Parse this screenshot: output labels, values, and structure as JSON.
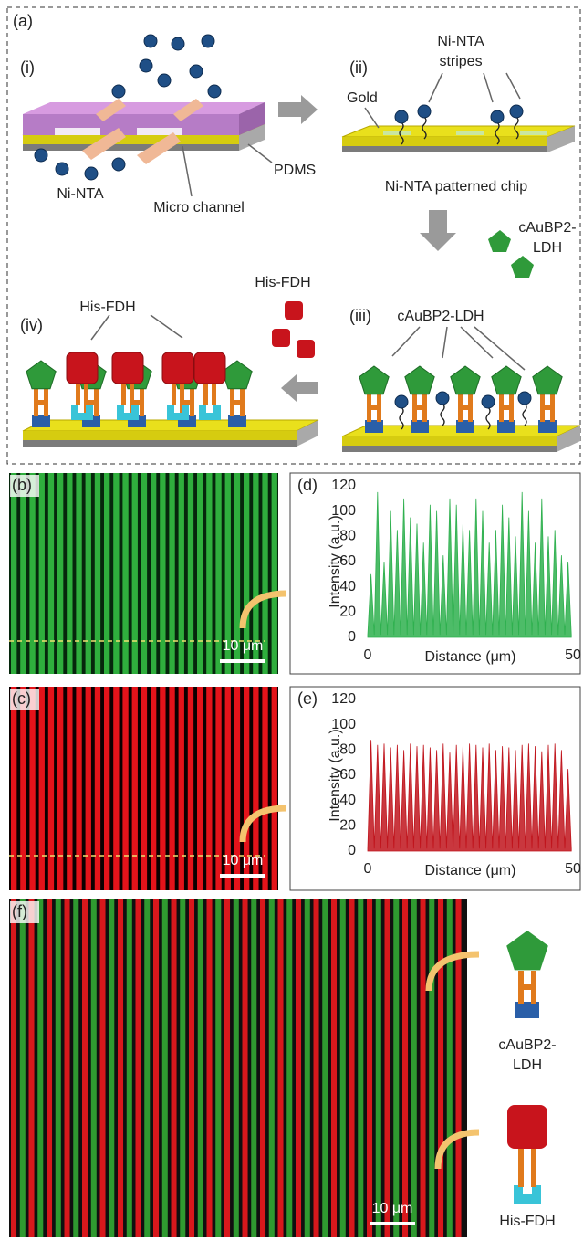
{
  "panel_a": {
    "label": "(a)",
    "sub_labels": [
      "(i)",
      "(ii)",
      "(iii)",
      "(iv)"
    ],
    "annotations": {
      "ni_nta": "Ni-NTA",
      "micro_channel": "Micro channel",
      "pdms": "PDMS",
      "stripes_1": "Ni-NTA",
      "stripes_2": "stripes",
      "gold": "Gold",
      "patterned_chip": "Ni-NTA patterned chip",
      "reagent_ldh_1": "cAuBP2-",
      "reagent_ldh_2": "LDH",
      "ldh_label": "cAuBP2-LDH",
      "reagent_fdh": "His-FDH",
      "fdh_label": "His-FDH"
    }
  },
  "panel_b": {
    "label": "(b)",
    "scale_bar": "10 μm"
  },
  "panel_c": {
    "label": "(c)",
    "scale_bar": "10 μm"
  },
  "panel_f": {
    "label": "(f)",
    "scale_bar": "10 μm",
    "legend": [
      "cAuBP2-",
      "LDH",
      "His-FDH"
    ]
  },
  "chart_data": [
    {
      "type": "area",
      "panel_label": "(d)",
      "color": "#2eb04e",
      "x": [
        0,
        0.8,
        1.6,
        2.4,
        3.2,
        4,
        4.8,
        5.6,
        6.4,
        7.2,
        8,
        8.8,
        9.6,
        10.4,
        11.2,
        12,
        12.8,
        13.6,
        14.4,
        15.2,
        16,
        16.8,
        17.6,
        18.4,
        19.2,
        20,
        20.8,
        21.6,
        22.4,
        23.2,
        24,
        24.8,
        25.6,
        26.4,
        27.2,
        28,
        28.8,
        29.6,
        30.4,
        31.2,
        32,
        32.8,
        33.6,
        34.4,
        35.2,
        36,
        36.8,
        37.6,
        38.4,
        39.2,
        40,
        40.8,
        41.6,
        42.4,
        43.2,
        44,
        44.8,
        45.6,
        46.4,
        47.2,
        48,
        48.8,
        49.6
      ],
      "values": [
        2,
        50,
        2,
        115,
        2,
        60,
        2,
        100,
        2,
        85,
        2,
        110,
        2,
        95,
        2,
        90,
        2,
        75,
        2,
        105,
        2,
        100,
        2,
        65,
        2,
        110,
        2,
        105,
        2,
        90,
        2,
        85,
        2,
        110,
        2,
        100,
        2,
        75,
        2,
        85,
        2,
        105,
        2,
        95,
        2,
        80,
        2,
        115,
        2,
        100,
        2,
        75,
        2,
        110,
        2,
        80,
        2,
        85,
        2,
        65,
        2,
        60,
        2
      ],
      "xlim": [
        0,
        50
      ],
      "ylim": [
        0,
        120
      ],
      "xticks": [
        0,
        50
      ],
      "yticks": [
        0,
        20,
        40,
        60,
        80,
        100,
        120
      ],
      "x_label": "Distance (μm)",
      "y_label": "Intensity (a.u.)"
    },
    {
      "type": "area",
      "panel_label": "(e)",
      "color": "#c0141c",
      "x": [
        0,
        0.8,
        1.6,
        2.4,
        3.2,
        4,
        4.8,
        5.6,
        6.4,
        7.2,
        8,
        8.8,
        9.6,
        10.4,
        11.2,
        12,
        12.8,
        13.6,
        14.4,
        15.2,
        16,
        16.8,
        17.6,
        18.4,
        19.2,
        20,
        20.8,
        21.6,
        22.4,
        23.2,
        24,
        24.8,
        25.6,
        26.4,
        27.2,
        28,
        28.8,
        29.6,
        30.4,
        31.2,
        32,
        32.8,
        33.6,
        34.4,
        35.2,
        36,
        36.8,
        37.6,
        38.4,
        39.2,
        40,
        40.8,
        41.6,
        42.4,
        43.2,
        44,
        44.8,
        45.6,
        46.4,
        47.2,
        48,
        48.8,
        49.6
      ],
      "values": [
        2,
        88,
        2,
        84,
        2,
        85,
        2,
        82,
        2,
        84,
        2,
        80,
        2,
        85,
        2,
        83,
        2,
        84,
        2,
        82,
        2,
        80,
        2,
        85,
        2,
        78,
        2,
        84,
        2,
        83,
        2,
        85,
        2,
        84,
        2,
        82,
        2,
        85,
        2,
        80,
        2,
        83,
        2,
        82,
        2,
        80,
        2,
        84,
        2,
        85,
        2,
        83,
        2,
        79,
        2,
        84,
        2,
        85,
        2,
        80,
        2,
        65,
        2
      ],
      "xlim": [
        0,
        50
      ],
      "ylim": [
        0,
        120
      ],
      "xticks": [
        0,
        50
      ],
      "yticks": [
        0,
        20,
        40,
        60,
        80,
        100,
        120
      ],
      "x_label": "Distance (μm)",
      "y_label": "Intensity (a.u.)"
    }
  ]
}
